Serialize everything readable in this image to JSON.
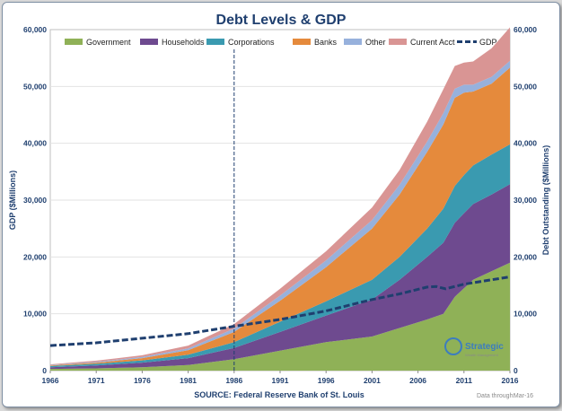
{
  "chart_data": {
    "type": "area",
    "title": "Debt Levels & GDP",
    "ylabel_left": "GDP ($Millions)",
    "ylabel_right": "Debt Outstanding ($Millions)",
    "source": "SOURCE: Federal Reserve Bank of St. Louis",
    "data_through_label": "Data through:",
    "data_through_value": "Mar-16",
    "xlim": [
      1966,
      2016
    ],
    "ylim": [
      0,
      60000
    ],
    "x_ticks": [
      "1966",
      "1971",
      "1976",
      "1981",
      "1986",
      "1991",
      "1996",
      "2001",
      "2006",
      "2011",
      "2016"
    ],
    "y_ticks_left": [
      "0",
      "10,000",
      "20,000",
      "30,000",
      "40,000",
      "50,000",
      "60,000"
    ],
    "y_ticks_right": [
      "0",
      "10,000",
      "20,000",
      "30,000",
      "40,000",
      "50,000",
      "60,000"
    ],
    "reference_line_x": 1986,
    "legend_position": "top",
    "x": [
      1966,
      1971,
      1976,
      1981,
      1986,
      1991,
      1996,
      2001,
      2004,
      2007,
      2008.75,
      2010,
      2011,
      2012,
      2014,
      2016
    ],
    "series": [
      {
        "name": "Government",
        "color": "#8fb157",
        "values": [
          300,
          400,
          600,
          1000,
          2000,
          3500,
          5000,
          6000,
          7500,
          9000,
          10000,
          13000,
          14500,
          16000,
          17500,
          19000
        ]
      },
      {
        "name": "Households",
        "color": "#6e4a8f",
        "values": [
          300,
          500,
          800,
          1200,
          2000,
          3300,
          4700,
          6500,
          8500,
          11000,
          12500,
          13000,
          13200,
          13300,
          13500,
          13800
        ]
      },
      {
        "name": "Corporations",
        "color": "#3a9ab0",
        "values": [
          200,
          300,
          400,
          600,
          1000,
          1800,
          2500,
          3500,
          4000,
          5000,
          6000,
          6500,
          6700,
          6800,
          7000,
          7000
        ]
      },
      {
        "name": "Banks",
        "color": "#e58a3c",
        "values": [
          100,
          200,
          400,
          800,
          1800,
          3700,
          6000,
          9000,
          11000,
          13500,
          14800,
          15500,
          14500,
          13000,
          12500,
          13500
        ]
      },
      {
        "name": "Other",
        "color": "#97b1dc",
        "values": [
          100,
          150,
          200,
          300,
          600,
          900,
          1200,
          1500,
          1700,
          1800,
          2000,
          1600,
          1400,
          1200,
          1200,
          1200
        ]
      },
      {
        "name": "Current Acct",
        "color": "#d99594",
        "values": [
          100,
          200,
          300,
          500,
          800,
          1200,
          1600,
          2200,
          2600,
          3500,
          4200,
          4000,
          3900,
          4100,
          5000,
          5900
        ]
      }
    ],
    "gdp_series": {
      "name": "GDP",
      "color": "#1f3f6f",
      "x": [
        1966,
        1971,
        1976,
        1981,
        1986,
        1991,
        1996,
        2001,
        2004,
        2007,
        2008,
        2009,
        2011,
        2016
      ],
      "values": [
        4400,
        4900,
        5700,
        6500,
        7800,
        9000,
        10500,
        12500,
        13500,
        14700,
        14800,
        14400,
        15200,
        16500
      ]
    }
  },
  "logo": {
    "text": "Strategic",
    "subtext": "Wealth Management"
  }
}
